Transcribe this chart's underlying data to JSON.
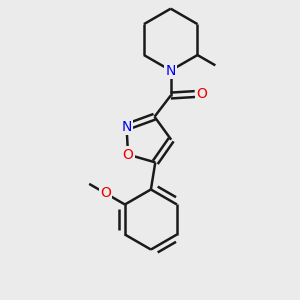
{
  "bg_color": "#ebebeb",
  "bond_color": "#1a1a1a",
  "N_color": "#0000ee",
  "O_color": "#ee0000",
  "line_width": 1.8,
  "font_size": 10,
  "fig_w": 3.0,
  "fig_h": 3.0,
  "dpi": 100,
  "xlim": [
    0,
    10
  ],
  "ylim": [
    0,
    10
  ]
}
